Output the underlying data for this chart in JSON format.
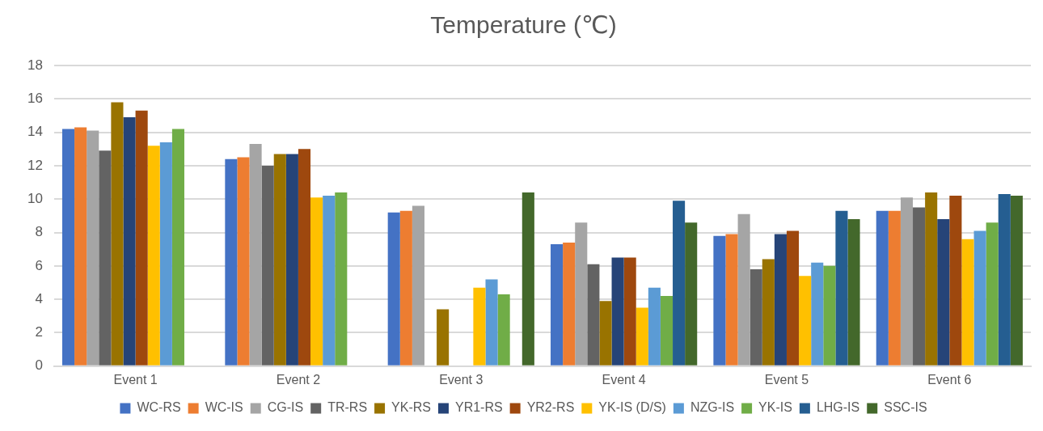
{
  "chart_data": {
    "type": "bar",
    "title": "Temperature (℃)",
    "categories": [
      "Event 1",
      "Event 2",
      "Event 3",
      "Event 4",
      "Event 5",
      "Event 6"
    ],
    "series": [
      {
        "name": "WC-RS",
        "color": "#4472c4",
        "values": [
          14.2,
          12.4,
          9.2,
          7.3,
          7.8,
          9.3
        ]
      },
      {
        "name": "WC-IS",
        "color": "#ed7d31",
        "values": [
          14.3,
          12.5,
          9.3,
          7.4,
          7.9,
          9.3
        ]
      },
      {
        "name": "CG-IS",
        "color": "#a5a5a5",
        "values": [
          14.1,
          13.3,
          9.6,
          8.6,
          9.1,
          10.1
        ]
      },
      {
        "name": "TR-RS",
        "color": "#636363",
        "values": [
          12.9,
          12.0,
          null,
          6.1,
          5.8,
          9.5
        ]
      },
      {
        "name": "YK-RS",
        "color": "#997300",
        "values": [
          15.8,
          12.7,
          3.4,
          3.9,
          6.4,
          10.4
        ]
      },
      {
        "name": "YR1-RS",
        "color": "#264478",
        "values": [
          14.9,
          12.7,
          null,
          6.5,
          7.9,
          8.8
        ]
      },
      {
        "name": "YR2-RS",
        "color": "#9e480e",
        "values": [
          15.3,
          13.0,
          null,
          6.5,
          8.1,
          10.2
        ]
      },
      {
        "name": "YK-IS (D/S)",
        "color": "#ffc000",
        "values": [
          13.2,
          10.1,
          4.7,
          3.5,
          5.4,
          7.6
        ]
      },
      {
        "name": "NZG-IS",
        "color": "#5b9bd5",
        "values": [
          13.4,
          10.2,
          5.2,
          4.7,
          6.2,
          8.1
        ]
      },
      {
        "name": "YK-IS",
        "color": "#70ad47",
        "values": [
          14.2,
          10.4,
          4.3,
          4.2,
          6.0,
          8.6
        ]
      },
      {
        "name": "LHG-IS",
        "color": "#255e91",
        "values": [
          null,
          null,
          null,
          9.9,
          9.3,
          10.3
        ]
      },
      {
        "name": "SSC-IS",
        "color": "#43682b",
        "values": [
          null,
          null,
          10.4,
          8.6,
          8.8,
          10.2
        ]
      }
    ],
    "ylim": [
      0,
      18
    ],
    "yticks": [
      0,
      2,
      4,
      6,
      8,
      10,
      12,
      14,
      16,
      18
    ],
    "grid": "y",
    "legend": "bottom"
  }
}
